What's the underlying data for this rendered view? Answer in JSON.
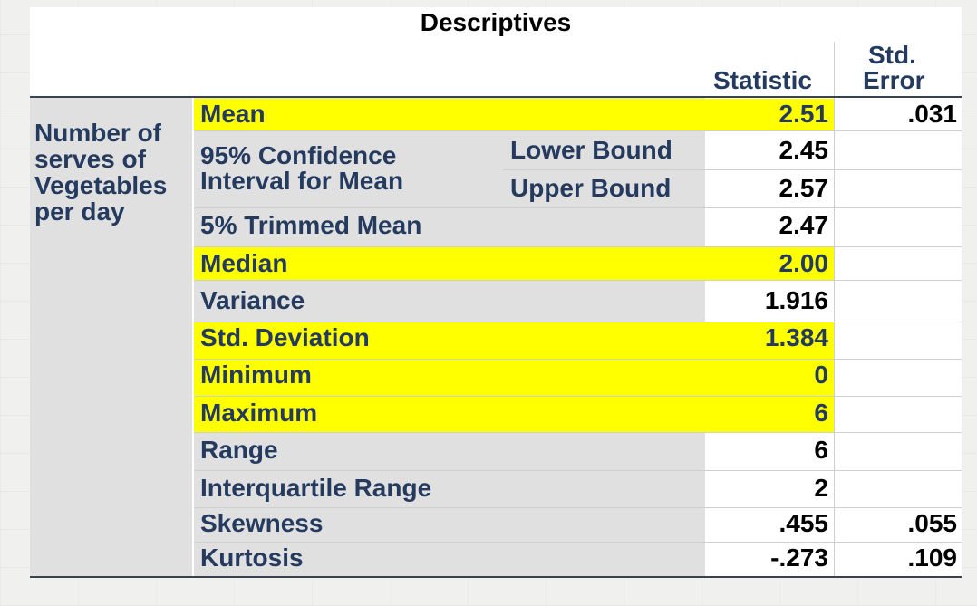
{
  "title": "Descriptives",
  "headers": {
    "statistic": "Statistic",
    "std_error_line1": "Std.",
    "std_error_line2": "Error"
  },
  "variable": {
    "line1": "Number of",
    "line2": "serves of",
    "line3": "Vegetables",
    "line4": "per day"
  },
  "ci": {
    "line1": "95% Confidence",
    "line2": "Interval for Mean",
    "lower": "Lower Bound",
    "upper": "Upper Bound"
  },
  "rows": [
    {
      "label": "Mean",
      "statistic": "2.51",
      "std_error": ".031"
    },
    {
      "label": "",
      "statistic": "2.45",
      "std_error": ""
    },
    {
      "label": "",
      "statistic": "2.57",
      "std_error": ""
    },
    {
      "label": "5% Trimmed Mean",
      "statistic": "2.47",
      "std_error": ""
    },
    {
      "label": "Median",
      "statistic": "2.00",
      "std_error": ""
    },
    {
      "label": "Variance",
      "statistic": "1.916",
      "std_error": ""
    },
    {
      "label": "Std. Deviation",
      "statistic": "1.384",
      "std_error": ""
    },
    {
      "label": "Minimum",
      "statistic": "0",
      "std_error": ""
    },
    {
      "label": "Maximum",
      "statistic": "6",
      "std_error": ""
    },
    {
      "label": "Range",
      "statistic": "6",
      "std_error": ""
    },
    {
      "label": "Interquartile Range",
      "statistic": "2",
      "std_error": ""
    },
    {
      "label": "Skewness",
      "statistic": ".455",
      "std_error": ".055"
    },
    {
      "label": "Kurtosis",
      "statistic": "-.273",
      "std_error": ".109"
    }
  ],
  "colors": {
    "highlight": "#ffff00",
    "label_text": "#243a5e",
    "cell_gray": "#e0e0e0"
  }
}
